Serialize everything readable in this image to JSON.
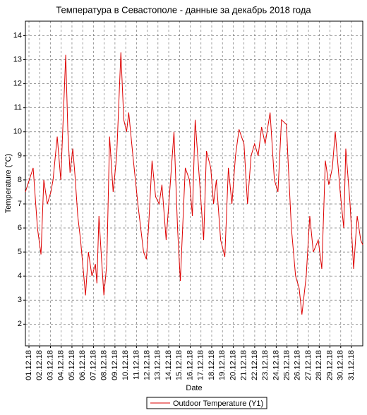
{
  "chart_data": {
    "type": "line",
    "title": "Температура в Севастополе - данные за декабрь 2018 года",
    "xlabel": "Date",
    "ylabel": "Temperature (°C)",
    "x": [
      0.67,
      1.39,
      1.79,
      2.12,
      2.38,
      2.71,
      3.04,
      3.24,
      3.63,
      3.96,
      4.42,
      4.62,
      4.82,
      5.08,
      5.28,
      5.54,
      5.8,
      6.26,
      6.53,
      6.86,
      7.18,
      7.32,
      7.51,
      7.71,
      7.97,
      8.24,
      8.5,
      8.83,
      9.16,
      9.55,
      9.82,
      10.08,
      10.28,
      10.67,
      11.13,
      11.66,
      11.92,
      12.12,
      12.45,
      12.78,
      13.11,
      13.37,
      13.76,
      14.09,
      14.49,
      14.82,
      15.08,
      15.54,
      15.93,
      16.2,
      16.46,
      16.86,
      17.25,
      17.51,
      17.91,
      18.17,
      18.43,
      18.83,
      19.22,
      19.55,
      19.88,
      20.21,
      20.54,
      21,
      21.33,
      21.66,
      21.99,
      22.32,
      22.64,
      22.97,
      23.43,
      23.83,
      24.16,
      24.49,
      24.95,
      25.08,
      25.41,
      25.8,
      26.13,
      26.39,
      26.79,
      27.12,
      27.45,
      27.91,
      28.24,
      28.57,
      28.89,
      29.22,
      29.49,
      29.95,
      30.28,
      30.47,
      30.87,
      31.2,
      31.53,
      31.86,
      32.05
    ],
    "series": [
      {
        "name": "Outdoor Temperature (Y1)",
        "color": "#dd0000",
        "values": [
          7.5,
          8.5,
          6,
          4.9,
          8,
          7,
          7.5,
          8,
          9.8,
          8,
          13.2,
          10,
          8.3,
          9.3,
          8.2,
          6.5,
          5.5,
          3.2,
          5,
          4,
          4.5,
          3.7,
          6.5,
          5,
          3.2,
          4.5,
          9.8,
          7.5,
          9,
          13.3,
          10.5,
          10,
          10.8,
          9,
          7,
          5,
          4.7,
          6,
          8.8,
          7.3,
          7,
          7.8,
          5.5,
          7.5,
          10,
          6,
          3.8,
          8.5,
          8,
          6.5,
          10.5,
          8,
          5.5,
          9.2,
          8.5,
          7,
          8,
          5.5,
          4.8,
          8.5,
          7,
          9,
          10.1,
          9.5,
          7,
          9,
          9.5,
          9,
          10.2,
          9.5,
          10.8,
          8,
          7.5,
          10.5,
          10.3,
          9,
          6,
          4,
          3.5,
          2.4,
          4,
          6.5,
          5,
          5.5,
          4.3,
          8.8,
          7.8,
          8.5,
          10,
          7.5,
          6,
          9.3,
          7,
          4.3,
          6.5,
          5.5,
          5.3
        ]
      }
    ],
    "xlim": [
      0.67,
      32.05
    ],
    "xticks": [
      {
        "value": 1,
        "label": "01.12.18"
      },
      {
        "value": 2,
        "label": "02.12.18"
      },
      {
        "value": 3,
        "label": "03.12.18"
      },
      {
        "value": 4,
        "label": "04.12.18"
      },
      {
        "value": 5,
        "label": "05.12.18"
      },
      {
        "value": 6,
        "label": "06.12.18"
      },
      {
        "value": 7,
        "label": "07.12.18"
      },
      {
        "value": 8,
        "label": "08.12.18"
      },
      {
        "value": 9,
        "label": "09.12.18"
      },
      {
        "value": 10,
        "label": "10.12.18"
      },
      {
        "value": 11,
        "label": "11.12.18"
      },
      {
        "value": 12,
        "label": "12.12.18"
      },
      {
        "value": 13,
        "label": "13.12.18"
      },
      {
        "value": 14,
        "label": "14.12.18"
      },
      {
        "value": 15,
        "label": "15.12.18"
      },
      {
        "value": 16,
        "label": "16.12.18"
      },
      {
        "value": 17,
        "label": "17.12.18"
      },
      {
        "value": 18,
        "label": "18.12.18"
      },
      {
        "value": 19,
        "label": "19.12.18"
      },
      {
        "value": 20,
        "label": "20.12.18"
      },
      {
        "value": 21,
        "label": "21.12.18"
      },
      {
        "value": 22,
        "label": "22.12.18"
      },
      {
        "value": 23,
        "label": "23.12.18"
      },
      {
        "value": 24,
        "label": "24.12.18"
      },
      {
        "value": 25,
        "label": "25.12.18"
      },
      {
        "value": 26,
        "label": "26.12.18"
      },
      {
        "value": 27,
        "label": "27.12.18"
      },
      {
        "value": 28,
        "label": "28.12.18"
      },
      {
        "value": 29,
        "label": "29.12.18"
      },
      {
        "value": 30,
        "label": "30.12.18"
      },
      {
        "value": 31,
        "label": "31.12.18"
      }
    ],
    "ylim": [
      1.1,
      14.6
    ],
    "yticks": [
      2,
      3,
      4,
      5,
      6,
      7,
      8,
      9,
      10,
      11,
      12,
      13,
      14
    ],
    "grid": true,
    "legend": "bottom"
  }
}
